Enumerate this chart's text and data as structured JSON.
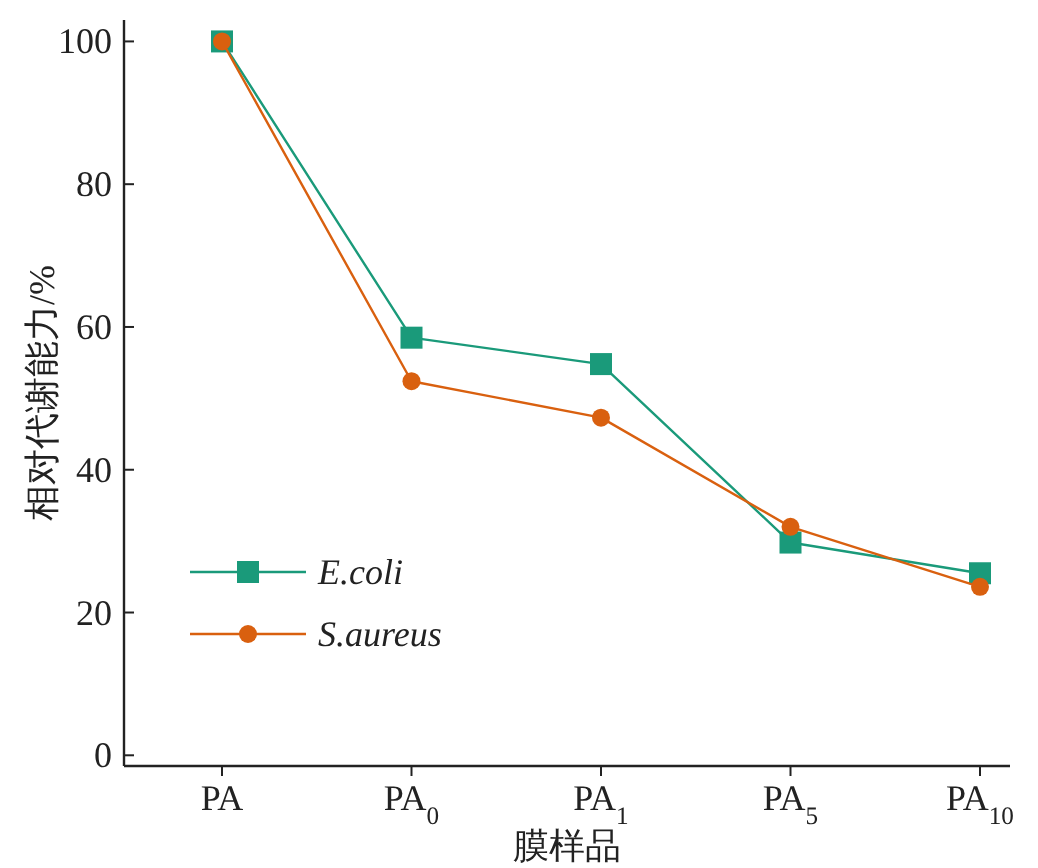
{
  "chart_data": {
    "type": "line",
    "xlabel": "膜样品",
    "ylabel": "相对代谢能力/%",
    "categories": [
      "PA",
      "PA$_{0}$",
      "PA$_{1}$",
      "PA$_{5}$",
      "PA$_{10}$"
    ],
    "ylim": [
      -1.5,
      103
    ],
    "yticks": [
      0,
      20,
      40,
      60,
      80,
      100
    ],
    "legend": "bottom left",
    "grid": false,
    "series": [
      {
        "name": "E.coli",
        "color": "#1a9a7a",
        "marker": "square",
        "values": [
          100,
          58.5,
          54.8,
          29.8,
          25.5
        ]
      },
      {
        "name": "S.aureus",
        "color": "#d9600f",
        "marker": "circle",
        "values": [
          100,
          52.4,
          47.3,
          32,
          23.6
        ]
      }
    ]
  }
}
